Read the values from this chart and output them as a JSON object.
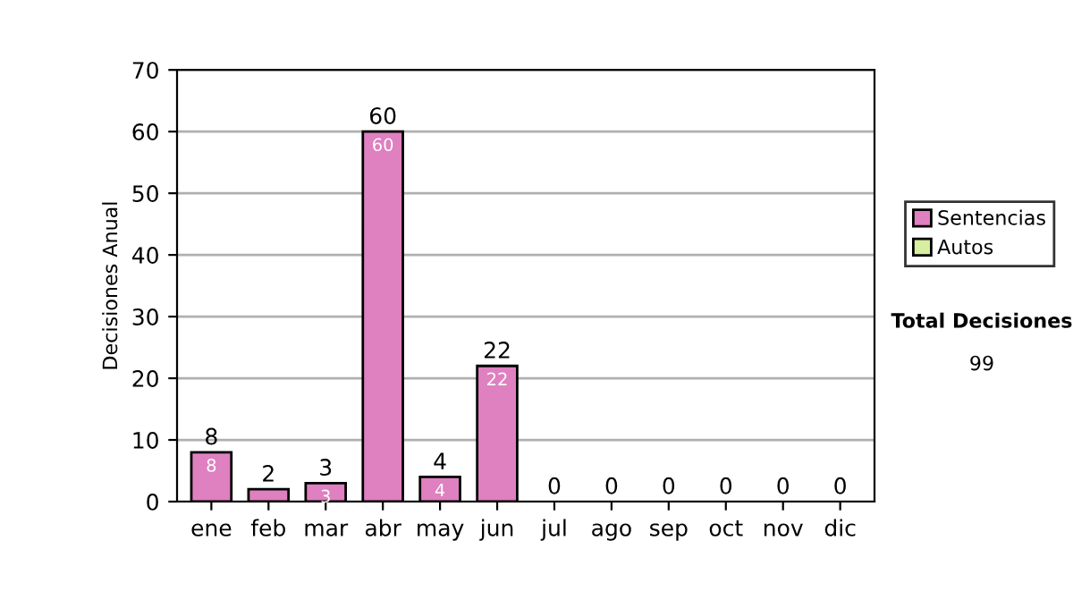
{
  "chart_data": {
    "type": "bar",
    "stacked": true,
    "ylabel": "Decisiones Anual",
    "categories": [
      "ene",
      "feb",
      "mar",
      "abr",
      "may",
      "jun",
      "jul",
      "ago",
      "sep",
      "oct",
      "nov",
      "dic"
    ],
    "series": [
      {
        "name": "Sentencias",
        "color": "#df80c0",
        "values": [
          8,
          2,
          3,
          60,
          4,
          22,
          0,
          0,
          0,
          0,
          0,
          0
        ],
        "value_labels": [
          "8",
          null,
          "3",
          "60",
          "4",
          "22",
          null,
          null,
          null,
          null,
          null,
          null
        ]
      },
      {
        "name": "Autos",
        "color": "#d8eea0",
        "values": [
          0,
          0,
          0,
          0,
          0,
          0,
          0,
          0,
          0,
          0,
          0,
          0
        ]
      }
    ],
    "totals": [
      "8",
      "2",
      "3",
      "60",
      "4",
      "22",
      "0",
      "0",
      "0",
      "0",
      "0",
      "0"
    ],
    "ylim": [
      0,
      70
    ],
    "yticks": [
      0,
      10,
      20,
      30,
      40,
      50,
      60,
      70
    ],
    "grid": "y",
    "legend": "right",
    "annotations": [
      "Total Decisiones",
      "99"
    ]
  }
}
